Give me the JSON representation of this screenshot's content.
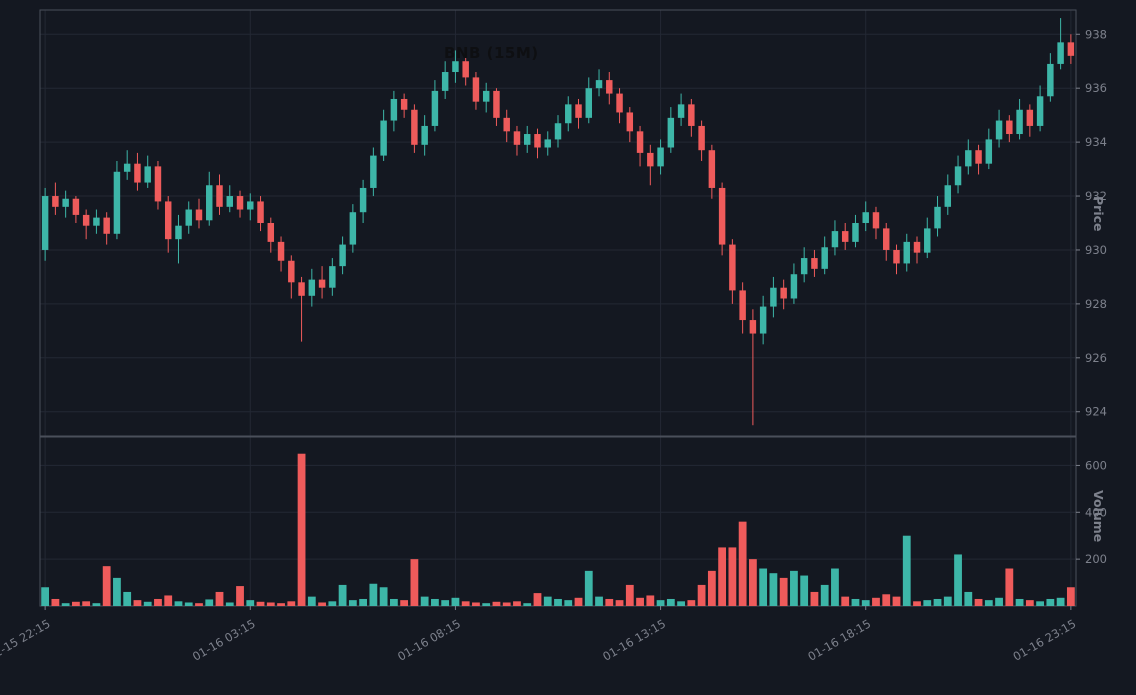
{
  "title": "BNB (15M)",
  "colors": {
    "background": "#141821",
    "up": "#3db6a8",
    "down": "#ef5b5b",
    "grid": "#232834",
    "frame": "#4a4f5a",
    "tick_label": "#7d818c",
    "axis_title": "#7d818c",
    "title_text": "#0e0f12"
  },
  "price_axis": {
    "label": "Price",
    "ticks": [
      924,
      926,
      928,
      930,
      932,
      934,
      936,
      938
    ]
  },
  "volume_axis": {
    "label": "Volume",
    "ticks": [
      200,
      400,
      600
    ],
    "max": 700
  },
  "x_axis": {
    "tick_indices": [
      0,
      20,
      40,
      60,
      80,
      100
    ],
    "tick_labels": [
      "01-15 22:15",
      "01-16 03:15",
      "01-16 08:15",
      "01-16 13:15",
      "01-16 18:15",
      "01-16 23:15"
    ]
  },
  "chart_data": {
    "type": "candlestick",
    "symbol": "BNB",
    "interval": "15M",
    "title": "BNB (15M)",
    "price_range": [
      923.1,
      938.9
    ],
    "columns": [
      "open",
      "high",
      "low",
      "close",
      "volume"
    ],
    "candles": [
      [
        930.0,
        932.3,
        929.6,
        932.0,
        80
      ],
      [
        932.0,
        932.5,
        931.3,
        931.6,
        30
      ],
      [
        931.6,
        932.2,
        931.2,
        931.9,
        12
      ],
      [
        931.9,
        932.0,
        931.0,
        931.3,
        18
      ],
      [
        931.3,
        931.5,
        930.4,
        930.9,
        20
      ],
      [
        930.9,
        931.5,
        930.6,
        931.2,
        12
      ],
      [
        931.2,
        931.4,
        930.2,
        930.6,
        170
      ],
      [
        930.6,
        933.3,
        930.4,
        932.9,
        120
      ],
      [
        932.9,
        933.7,
        932.6,
        933.2,
        60
      ],
      [
        933.2,
        933.6,
        932.2,
        932.5,
        25
      ],
      [
        932.5,
        933.5,
        932.3,
        933.1,
        18
      ],
      [
        933.1,
        933.3,
        931.5,
        931.8,
        30
      ],
      [
        931.8,
        932.0,
        929.9,
        930.4,
        45
      ],
      [
        930.4,
        931.3,
        929.5,
        930.9,
        20
      ],
      [
        930.9,
        931.8,
        930.6,
        931.5,
        15
      ],
      [
        931.5,
        931.9,
        930.8,
        931.1,
        12
      ],
      [
        931.1,
        932.9,
        930.9,
        932.4,
        28
      ],
      [
        932.4,
        932.8,
        931.3,
        931.6,
        60
      ],
      [
        931.6,
        932.4,
        931.4,
        932.0,
        15
      ],
      [
        932.0,
        932.2,
        931.2,
        931.5,
        85
      ],
      [
        931.5,
        932.1,
        931.1,
        931.8,
        25
      ],
      [
        931.8,
        932.0,
        930.7,
        931.0,
        18
      ],
      [
        931.0,
        931.2,
        929.9,
        930.3,
        15
      ],
      [
        930.3,
        930.5,
        929.2,
        929.6,
        12
      ],
      [
        929.6,
        929.8,
        928.2,
        928.8,
        20
      ],
      [
        928.8,
        929.0,
        926.6,
        928.3,
        650
      ],
      [
        928.3,
        929.3,
        927.9,
        928.9,
        40
      ],
      [
        928.9,
        929.4,
        928.2,
        928.6,
        15
      ],
      [
        928.6,
        929.7,
        928.3,
        929.4,
        20
      ],
      [
        929.4,
        930.5,
        929.1,
        930.2,
        90
      ],
      [
        930.2,
        931.7,
        929.9,
        931.4,
        25
      ],
      [
        931.4,
        932.6,
        931.0,
        932.3,
        30
      ],
      [
        932.3,
        933.8,
        932.0,
        933.5,
        95
      ],
      [
        933.5,
        935.2,
        933.3,
        934.8,
        80
      ],
      [
        934.8,
        935.9,
        934.4,
        935.6,
        30
      ],
      [
        935.6,
        935.8,
        934.9,
        935.2,
        25
      ],
      [
        935.2,
        935.4,
        933.6,
        933.9,
        200
      ],
      [
        933.9,
        935.0,
        933.5,
        934.6,
        40
      ],
      [
        934.6,
        936.3,
        934.4,
        935.9,
        30
      ],
      [
        935.9,
        937.0,
        935.6,
        936.6,
        25
      ],
      [
        936.6,
        937.4,
        936.2,
        937.0,
        35
      ],
      [
        937.0,
        937.3,
        936.1,
        936.4,
        20
      ],
      [
        936.4,
        936.6,
        935.2,
        935.5,
        15
      ],
      [
        935.5,
        936.2,
        935.1,
        935.9,
        12
      ],
      [
        935.9,
        936.0,
        934.6,
        934.9,
        18
      ],
      [
        934.9,
        935.2,
        934.0,
        934.4,
        15
      ],
      [
        934.4,
        934.6,
        933.5,
        933.9,
        20
      ],
      [
        933.9,
        934.6,
        933.6,
        934.3,
        12
      ],
      [
        934.3,
        934.5,
        933.4,
        933.8,
        55
      ],
      [
        933.8,
        934.4,
        933.5,
        934.1,
        40
      ],
      [
        934.1,
        935.0,
        933.8,
        934.7,
        30
      ],
      [
        934.7,
        935.7,
        934.4,
        935.4,
        25
      ],
      [
        935.4,
        935.6,
        934.5,
        934.9,
        35
      ],
      [
        934.9,
        936.4,
        934.7,
        936.0,
        150
      ],
      [
        936.0,
        936.7,
        935.7,
        936.3,
        40
      ],
      [
        936.3,
        936.6,
        935.4,
        935.8,
        30
      ],
      [
        935.8,
        936.0,
        934.7,
        935.1,
        25
      ],
      [
        935.1,
        935.3,
        934.0,
        934.4,
        90
      ],
      [
        934.4,
        934.6,
        933.1,
        933.6,
        35
      ],
      [
        933.6,
        933.9,
        932.4,
        933.1,
        45
      ],
      [
        933.1,
        934.1,
        932.8,
        933.8,
        25
      ],
      [
        933.8,
        935.3,
        933.6,
        934.9,
        30
      ],
      [
        934.9,
        935.8,
        934.6,
        935.4,
        20
      ],
      [
        935.4,
        935.6,
        934.2,
        934.6,
        25
      ],
      [
        934.6,
        934.8,
        933.3,
        933.7,
        90
      ],
      [
        933.7,
        933.9,
        931.9,
        932.3,
        150
      ],
      [
        932.3,
        932.5,
        929.8,
        930.2,
        250
      ],
      [
        930.2,
        930.4,
        928.0,
        928.5,
        250
      ],
      [
        928.5,
        928.8,
        926.9,
        927.4,
        360
      ],
      [
        927.4,
        927.8,
        923.5,
        926.9,
        200
      ],
      [
        926.9,
        928.3,
        926.5,
        927.9,
        160
      ],
      [
        927.9,
        929.0,
        927.5,
        928.6,
        140
      ],
      [
        928.6,
        928.9,
        927.8,
        928.2,
        120
      ],
      [
        928.2,
        929.5,
        928.0,
        929.1,
        150
      ],
      [
        929.1,
        930.1,
        928.8,
        929.7,
        130
      ],
      [
        929.7,
        930.0,
        929.0,
        929.3,
        60
      ],
      [
        929.3,
        930.5,
        929.1,
        930.1,
        90
      ],
      [
        930.1,
        931.1,
        929.8,
        930.7,
        160
      ],
      [
        930.7,
        931.0,
        930.0,
        930.3,
        40
      ],
      [
        930.3,
        931.3,
        930.1,
        931.0,
        30
      ],
      [
        931.0,
        931.8,
        930.7,
        931.4,
        25
      ],
      [
        931.4,
        931.6,
        930.4,
        930.8,
        35
      ],
      [
        930.8,
        931.0,
        929.6,
        930.0,
        50
      ],
      [
        930.0,
        930.2,
        929.1,
        929.5,
        40
      ],
      [
        929.5,
        930.6,
        929.2,
        930.3,
        300
      ],
      [
        930.3,
        930.5,
        929.5,
        929.9,
        20
      ],
      [
        929.9,
        931.2,
        929.7,
        930.8,
        25
      ],
      [
        930.8,
        932.0,
        930.5,
        931.6,
        30
      ],
      [
        931.6,
        932.8,
        931.3,
        932.4,
        40
      ],
      [
        932.4,
        933.5,
        932.1,
        933.1,
        220
      ],
      [
        933.1,
        934.1,
        932.8,
        933.7,
        60
      ],
      [
        933.7,
        933.9,
        932.8,
        933.2,
        30
      ],
      [
        933.2,
        934.5,
        933.0,
        934.1,
        25
      ],
      [
        934.1,
        935.2,
        933.8,
        934.8,
        35
      ],
      [
        934.8,
        935.0,
        934.0,
        934.3,
        160
      ],
      [
        934.3,
        935.6,
        934.1,
        935.2,
        30
      ],
      [
        935.2,
        935.4,
        934.2,
        934.6,
        25
      ],
      [
        934.6,
        936.1,
        934.4,
        935.7,
        20
      ],
      [
        935.7,
        937.3,
        935.5,
        936.9,
        30
      ],
      [
        936.9,
        938.6,
        936.7,
        937.7,
        35
      ],
      [
        937.7,
        938.0,
        936.9,
        937.2,
        80
      ]
    ]
  }
}
